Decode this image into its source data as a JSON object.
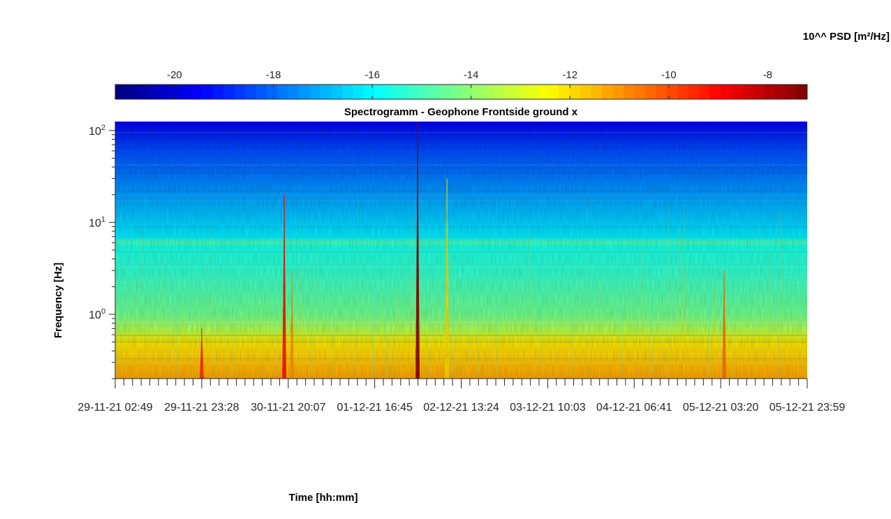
{
  "chart_data": {
    "type": "heatmap",
    "title": "Spectrogramm - Geophone Frontside ground x",
    "xlabel": "Time [hh:mm]",
    "ylabel": "Frequency [Hz]",
    "y_scale": "log",
    "y_range": [
      0.2,
      125
    ],
    "x_range": [
      "29-11-21 02:49",
      "05-12-21 23:59"
    ],
    "x_ticks": [
      "29-11-21 02:49",
      "29-11-21 23:28",
      "30-11-21 20:07",
      "01-12-21 16:45",
      "02-12-21 13:24",
      "03-12-21 10:03",
      "04-12-21 06:41",
      "05-12-21 03:20",
      "05-12-21 23:59"
    ],
    "y_ticks": [
      {
        "base": "10",
        "exp": "0",
        "value": 1
      },
      {
        "base": "10",
        "exp": "1",
        "value": 10
      },
      {
        "base": "10",
        "exp": "2",
        "value": 100
      }
    ],
    "colorbar": {
      "label": "10^^ PSD [m²/Hz]",
      "colormap": "jet",
      "range": [
        -21.2,
        -7.2
      ],
      "ticks": [
        "-20",
        "-18",
        "-16",
        "-14",
        "-12",
        "-10",
        "-8"
      ],
      "tick_values": [
        -20,
        -18,
        -16,
        -14,
        -12,
        -10,
        -8
      ]
    },
    "psd_profile": [
      {
        "freq": 0.2,
        "log10_psd": -11.2
      },
      {
        "freq": 0.5,
        "log10_psd": -12.2
      },
      {
        "freq": 0.7,
        "log10_psd": -13.6
      },
      {
        "freq": 1.0,
        "log10_psd": -14.4
      },
      {
        "freq": 3.0,
        "log10_psd": -15.3
      },
      {
        "freq": 5.5,
        "log10_psd": -15.6
      },
      {
        "freq": 6.0,
        "log10_psd": -15.0
      },
      {
        "freq": 7.0,
        "log10_psd": -16.2
      },
      {
        "freq": 20,
        "log10_psd": -17.3
      },
      {
        "freq": 60,
        "log10_psd": -18.4
      },
      {
        "freq": 125,
        "log10_psd": -19.7
      }
    ],
    "events": [
      {
        "time": "29-11-21 23:28",
        "log10_psd_peak": -9.5,
        "fmax": 0.7
      },
      {
        "time": "30-11-21 19:10",
        "log10_psd_peak": -9.2,
        "fmax": 20
      },
      {
        "time": "30-11-21 21:00",
        "log10_psd_peak": -11.0,
        "fmax": 3
      },
      {
        "time": "02-12-21 03:00",
        "log10_psd_peak": -7.4,
        "fmax": 125
      },
      {
        "time": "02-12-21 10:00",
        "log10_psd_peak": -12.0,
        "fmax": 30
      },
      {
        "time": "05-12-21 04:10",
        "log10_psd_peak": -10.5,
        "fmax": 3
      }
    ],
    "grid": false
  }
}
